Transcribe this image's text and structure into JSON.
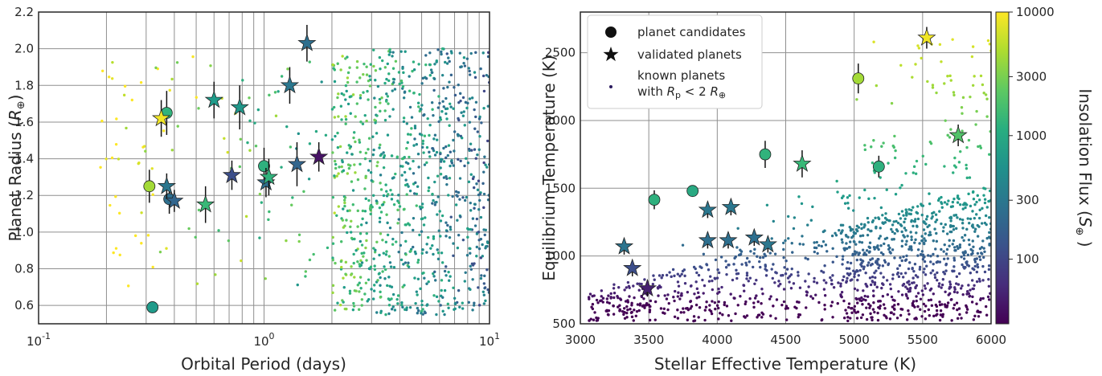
{
  "chart_data": [
    {
      "type": "scatter",
      "panel": "left",
      "xlabel": "Orbital Period (days)",
      "ylabel": "Planet Radius (R ⊕)",
      "xscale": "log",
      "xlim": [
        0.1,
        10
      ],
      "ylim": [
        0.5,
        2.2
      ],
      "xticks": [
        0.1,
        1,
        10
      ],
      "yticks": [
        0.6,
        0.8,
        1.0,
        1.2,
        1.4,
        1.6,
        1.8,
        2.0,
        2.2
      ],
      "ytick_labels": [
        "0.6",
        "0.8",
        "1.0",
        "1.2",
        "1.4",
        "1.6",
        "1.8",
        "2.0",
        "2.2"
      ],
      "grid": true,
      "candidates": [
        {
          "x": 0.31,
          "y": 1.25,
          "yerr": 0.09,
          "flux": 4500
        },
        {
          "x": 0.32,
          "y": 0.59,
          "yerr": 0,
          "flux": 700
        },
        {
          "x": 0.37,
          "y": 1.65,
          "yerr": 0.12,
          "flux": 1300
        },
        {
          "x": 0.38,
          "y": 1.18,
          "yerr": 0.08,
          "flux": 250
        },
        {
          "x": 1.0,
          "y": 1.36,
          "yerr": 0.1,
          "flux": 1200
        }
      ],
      "validated": [
        {
          "x": 0.35,
          "y": 1.62,
          "yerr": 0.1,
          "flux": 9000
        },
        {
          "x": 0.37,
          "y": 1.25,
          "yerr": 0.07,
          "flux": 300
        },
        {
          "x": 0.4,
          "y": 1.17,
          "yerr": 0.06,
          "flux": 200
        },
        {
          "x": 0.55,
          "y": 1.15,
          "yerr": 0.1,
          "flux": 1500
        },
        {
          "x": 0.6,
          "y": 1.72,
          "yerr": 0.1,
          "flux": 700
        },
        {
          "x": 0.72,
          "y": 1.31,
          "yerr": 0.08,
          "flux": 120
        },
        {
          "x": 0.78,
          "y": 1.68,
          "yerr": 0.12,
          "flux": 650
        },
        {
          "x": 1.02,
          "y": 1.27,
          "yerr": 0.08,
          "flux": 250
        },
        {
          "x": 1.05,
          "y": 1.3,
          "yerr": 0.1,
          "flux": 1300
        },
        {
          "x": 1.3,
          "y": 1.8,
          "yerr": 0.1,
          "flux": 300
        },
        {
          "x": 1.4,
          "y": 1.37,
          "yerr": 0.12,
          "flux": 200
        },
        {
          "x": 1.55,
          "y": 2.03,
          "yerr": 0.1,
          "flux": 250
        },
        {
          "x": 1.75,
          "y": 1.41,
          "yerr": 0.08,
          "flux": 40
        }
      ]
    },
    {
      "type": "scatter",
      "panel": "right",
      "xlabel": "Stellar Effective Temperature (K)",
      "ylabel": "Equilibrium Temperature (K)",
      "xlim": [
        3000,
        6000
      ],
      "ylim": [
        500,
        2800
      ],
      "xticks": [
        3000,
        3500,
        4000,
        4500,
        5000,
        5500,
        6000
      ],
      "yticks": [
        500,
        1000,
        1500,
        2000,
        2500
      ],
      "grid": true,
      "candidates": [
        {
          "x": 3540,
          "y": 1415,
          "yerr": 70,
          "flux": 1200
        },
        {
          "x": 3820,
          "y": 1480,
          "yerr": 0,
          "flux": 1000
        },
        {
          "x": 4350,
          "y": 1750,
          "yerr": 100,
          "flux": 1300
        },
        {
          "x": 5030,
          "y": 2310,
          "yerr": 110,
          "flux": 4500
        },
        {
          "x": 5180,
          "y": 1660,
          "yerr": 80,
          "flux": 1200
        }
      ],
      "validated": [
        {
          "x": 3320,
          "y": 1070,
          "yerr": 60,
          "flux": 280
        },
        {
          "x": 3380,
          "y": 910,
          "yerr": 60,
          "flux": 120
        },
        {
          "x": 3490,
          "y": 760,
          "yerr": 60,
          "flux": 50
        },
        {
          "x": 3930,
          "y": 1340,
          "yerr": 60,
          "flux": 300
        },
        {
          "x": 3930,
          "y": 1115,
          "yerr": 60,
          "flux": 250
        },
        {
          "x": 4080,
          "y": 1115,
          "yerr": 60,
          "flux": 250
        },
        {
          "x": 4100,
          "y": 1360,
          "yerr": 60,
          "flux": 300
        },
        {
          "x": 4270,
          "y": 1135,
          "yerr": 60,
          "flux": 250
        },
        {
          "x": 4370,
          "y": 1085,
          "yerr": 60,
          "flux": 300
        },
        {
          "x": 4620,
          "y": 1680,
          "yerr": 100,
          "flux": 1500
        },
        {
          "x": 5530,
          "y": 2610,
          "yerr": 80,
          "flux": 9000
        },
        {
          "x": 5760,
          "y": 1890,
          "yerr": 80,
          "flux": 2000
        }
      ]
    }
  ],
  "legend": {
    "placement": "top-left",
    "candidates_label": "planet candidates",
    "validated_label": "validated planets",
    "known_label_line1": "known planets",
    "known_label_line2": "with R_p < 2 R⊕"
  },
  "colorbar": {
    "label": "Insolation Flux (S⊕)",
    "scale": "log",
    "range": [
      30,
      10000
    ],
    "ticks": [
      100,
      300,
      1000,
      3000,
      10000
    ],
    "tick_labels": [
      "100",
      "300",
      "1000",
      "3000",
      "10000"
    ],
    "colormap": "viridis"
  }
}
